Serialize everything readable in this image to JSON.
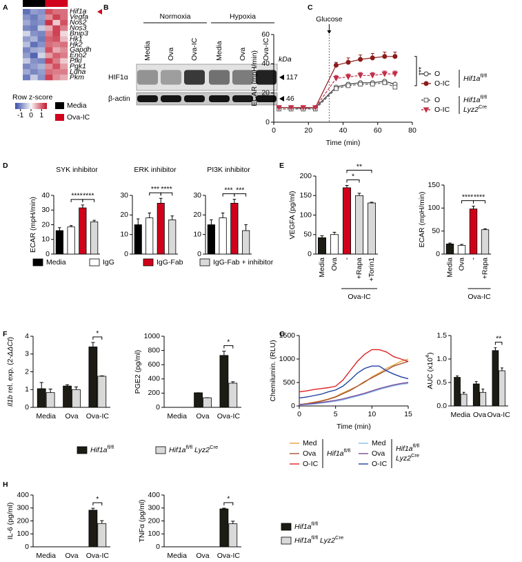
{
  "chart_data": [
    {
      "type": "heatmap",
      "panel": "A",
      "rows": [
        "Hif1a",
        "Vegfa",
        "Nos2",
        "Nos3",
        "Bnip3",
        "Hk1",
        "Hk2",
        "Gapdh",
        "Eno2",
        "Pfkl",
        "Pgk1",
        "Ldha",
        "Pkm"
      ],
      "values": [
        [
          -1.2,
          -0.8,
          -0.9,
          1.1,
          0.9,
          0.9
        ],
        [
          -0.9,
          -1.1,
          -0.8,
          0.7,
          1.2,
          0.9
        ],
        [
          -0.7,
          -1.0,
          -0.9,
          1.3,
          0.3,
          1.1
        ],
        [
          -1.0,
          -1.1,
          -0.4,
          0.5,
          1.2,
          0.8
        ],
        [
          -0.3,
          -0.9,
          -1.0,
          0.8,
          1.2,
          0.2
        ],
        [
          -0.8,
          -0.6,
          -1.1,
          1.0,
          1.1,
          0.4
        ],
        [
          -0.5,
          -1.2,
          -0.9,
          0.9,
          0.8,
          0.9
        ],
        [
          -1.0,
          -0.7,
          -0.6,
          1.1,
          0.5,
          0.7
        ],
        [
          -0.8,
          -1.3,
          -0.3,
          0.6,
          1.0,
          0.8
        ],
        [
          -0.4,
          -0.9,
          -1.0,
          1.2,
          0.8,
          0.3
        ],
        [
          -1.0,
          -0.8,
          -0.6,
          0.7,
          1.1,
          0.6
        ],
        [
          -0.7,
          -1.0,
          -0.8,
          0.9,
          0.8,
          0.8
        ],
        [
          -1.1,
          -0.4,
          -0.9,
          1.2,
          0.7,
          0.5
        ]
      ],
      "zlim": [
        -1.5,
        1.5
      ],
      "zticks": [
        -1,
        0,
        1
      ],
      "colorbar_label": "Row z-score",
      "groups": [
        {
          "name": "Media",
          "color": "#000000"
        },
        {
          "name": "Ova-IC",
          "color": "#d0021b"
        }
      ]
    },
    {
      "type": "blot",
      "panel": "B",
      "conditions": [
        "Normoxia",
        "Hypoxia"
      ],
      "lanes": [
        "Media",
        "Ova",
        "Ova-IC",
        "Media",
        "Ova",
        "Ova-IC"
      ],
      "unit": "kDa",
      "rows": [
        {
          "label": "HIF1α",
          "kda": 117
        },
        {
          "label": "β-actin",
          "kda": 46
        }
      ]
    },
    {
      "type": "line",
      "panel": "C",
      "ylabel": "ECAR (mpH/min)",
      "xlabel": "Time (min)",
      "xlim": [
        0,
        80
      ],
      "xticks": [
        0,
        20,
        40,
        60,
        80
      ],
      "ylim": [
        0,
        60
      ],
      "yticks": [
        0,
        20,
        40,
        60
      ],
      "event": {
        "label": "Glucose",
        "x": 32
      },
      "significance": "***",
      "x": [
        3,
        10,
        17,
        24,
        36,
        43,
        50,
        57,
        64,
        70
      ],
      "series": [
        {
          "name": "O",
          "color": "#333333",
          "marker": "circle-open",
          "dashed": false,
          "values": [
            10,
            10,
            9.5,
            10,
            24,
            26,
            27,
            27,
            28,
            26
          ]
        },
        {
          "name": "O-IC",
          "color": "#8b1a1a",
          "marker": "circle",
          "dashed": false,
          "values": [
            10,
            10,
            10,
            10,
            39,
            41,
            43,
            44,
            45,
            45
          ],
          "errors": [
            1,
            1,
            1,
            1,
            2,
            3,
            3,
            3,
            3,
            3
          ]
        },
        {
          "name": "O",
          "color": "#555555",
          "marker": "square-open",
          "dashed": true,
          "values": [
            9,
            9,
            9,
            9,
            23,
            25,
            26,
            26,
            27,
            24
          ]
        },
        {
          "name": "O-IC",
          "color": "#c0304a",
          "marker": "triangle-down",
          "dashed": true,
          "values": [
            10,
            10,
            10,
            10,
            30,
            31,
            32,
            32,
            33,
            33
          ],
          "errors": [
            1,
            1,
            1,
            1,
            2,
            2,
            2,
            2,
            2,
            2
          ]
        }
      ],
      "legend_groups": [
        [
          "Hif1a",
          "fl/fl"
        ],
        [
          "Hif1a",
          "fl/fl",
          "Lyz2",
          "Cre"
        ]
      ]
    },
    {
      "type": "bar",
      "panel": "D",
      "title": "SYK inhibitor",
      "ylabel": "ECAR (mpH/min)",
      "values": [
        16,
        18.5,
        31.5,
        22
      ],
      "errors": [
        2,
        1,
        2,
        1
      ],
      "colors": [
        "#000000",
        "#ffffff",
        "#d0021b",
        "#d9d9d9"
      ],
      "ylim": [
        0,
        40
      ],
      "yticks": [
        0,
        10,
        20,
        30,
        40
      ],
      "significance": [
        "****",
        "****"
      ],
      "legend": [
        {
          "name": "Media",
          "color": "#000000"
        },
        {
          "name": "IgG",
          "color": "#ffffff"
        },
        {
          "name": "IgG-Fab",
          "color": "#d0021b"
        },
        {
          "name": "IgG-Fab + inhibitor",
          "color": "#d9d9d9"
        }
      ]
    },
    {
      "type": "bar",
      "title": "ERK inhibitor",
      "values": [
        15,
        18.5,
        26,
        17.5
      ],
      "errors": [
        3,
        2.5,
        2.5,
        2
      ],
      "colors": [
        "#000000",
        "#ffffff",
        "#d0021b",
        "#d9d9d9"
      ],
      "ylim": [
        0,
        30
      ],
      "yticks": [
        0,
        10,
        20,
        30
      ],
      "significance": [
        "***",
        "****"
      ]
    },
    {
      "type": "bar",
      "title": "PI3K inhibitor",
      "values": [
        15,
        18.5,
        26,
        12
      ],
      "errors": [
        2.5,
        2.5,
        2,
        3
      ],
      "colors": [
        "#000000",
        "#ffffff",
        "#d0021b",
        "#d9d9d9"
      ],
      "ylim": [
        0,
        30
      ],
      "yticks": [
        0,
        10,
        20,
        30
      ],
      "significance": [
        "***",
        "***"
      ]
    },
    {
      "type": "bar",
      "panel": "E",
      "ylabel": "VEGFA (pg/ml)",
      "categories": [
        "Media",
        "Ova",
        "-",
        "+Rapa",
        "+Torin1"
      ],
      "group_label": "Ova-IC",
      "values": [
        42,
        50,
        170,
        150,
        131
      ],
      "errors": [
        5,
        6,
        6,
        6,
        2
      ],
      "colors": [
        "#1c1c14",
        "#ffffff",
        "#d0021b",
        "#d9d9d9",
        "#d9d9d9"
      ],
      "ylim": [
        0,
        200
      ],
      "yticks": [
        0,
        50,
        100,
        150,
        200
      ],
      "significance": [
        "*",
        "**"
      ]
    },
    {
      "type": "bar",
      "ylabel": "ECAR (mpH/min)",
      "categories": [
        "Media",
        "Ova",
        "-",
        "+Rapa"
      ],
      "group_label": "Ova-IC",
      "values": [
        22,
        19,
        98,
        53
      ],
      "errors": [
        2,
        2,
        6,
        2
      ],
      "colors": [
        "#1c1c14",
        "#ffffff",
        "#d0021b",
        "#d9d9d9"
      ],
      "ylim": [
        0,
        150
      ],
      "yticks": [
        0,
        50,
        100,
        150
      ],
      "significance": [
        "****",
        "****"
      ]
    },
    {
      "type": "bar",
      "panel": "F",
      "ylabel": [
        "Il1b",
        " rel. exp. (2",
        "-ΔΔCt",
        ")"
      ],
      "categories": [
        "Media",
        "Ova",
        "Ova-IC"
      ],
      "series": [
        {
          "name": [
            "Hif1a",
            "fl/fl"
          ],
          "color": "#1c1c14",
          "values": [
            1.05,
            1.2,
            3.4
          ],
          "errors": [
            0.35,
            0.07,
            0.25
          ]
        },
        {
          "name": [
            "Hif1a",
            "fl/fl",
            " Lyz2",
            "Cre"
          ],
          "color": "#d9d9d9",
          "values": [
            0.83,
            1.0,
            1.75
          ],
          "errors": [
            0.2,
            0.15,
            0.02
          ]
        }
      ],
      "ylim": [
        0,
        4
      ],
      "yticks": [
        0,
        1,
        2,
        3,
        4
      ],
      "significance": [
        "*"
      ]
    },
    {
      "type": "bar",
      "ylabel": "PGE2 (pg/ml)",
      "categories": [
        "Media",
        "Ova",
        "Ova-IC"
      ],
      "series": [
        {
          "color": "#1c1c14",
          "values": [
            0,
            205,
            730
          ],
          "errors": [
            0,
            0,
            60
          ]
        },
        {
          "color": "#d9d9d9",
          "values": [
            0,
            135,
            340
          ],
          "errors": [
            0,
            0,
            20
          ]
        }
      ],
      "ylim": [
        0,
        1000
      ],
      "yticks": [
        0,
        200,
        400,
        600,
        800,
        1000
      ],
      "significance": [
        "*"
      ]
    },
    {
      "type": "line",
      "panel": "G",
      "ylabel": "Chemilumin. (RLU)",
      "xlabel": "Time (min)",
      "xlim": [
        0,
        15
      ],
      "xticks": [
        0,
        5,
        10,
        15
      ],
      "ylim": [
        0,
        1500
      ],
      "yticks": [
        0,
        500,
        1000,
        1500
      ],
      "x": [
        0,
        1,
        2,
        3,
        4,
        5,
        6,
        7,
        8,
        9,
        10,
        11,
        12,
        13,
        14,
        15
      ],
      "series": [
        {
          "name": "Med",
          "color": "#e8a040",
          "values": [
            30,
            50,
            80,
            110,
            150,
            200,
            280,
            350,
            420,
            500,
            620,
            700,
            800,
            870,
            950,
            1000
          ]
        },
        {
          "name": "Ova",
          "color": "#a0522d",
          "values": [
            30,
            45,
            70,
            100,
            140,
            190,
            260,
            330,
            420,
            520,
            600,
            680,
            760,
            850,
            900,
            950
          ]
        },
        {
          "name": "O-IC",
          "color": "#e02020",
          "values": [
            300,
            320,
            350,
            370,
            390,
            420,
            550,
            750,
            950,
            1100,
            1200,
            1200,
            1150,
            1050,
            1000,
            950
          ]
        },
        {
          "name": "Med",
          "color": "#88bbee",
          "values": [
            20,
            30,
            40,
            60,
            80,
            100,
            130,
            170,
            210,
            250,
            300,
            350,
            390,
            430,
            460,
            480
          ]
        },
        {
          "name": "Ova",
          "color": "#7a4a9a",
          "values": [
            30,
            40,
            55,
            75,
            95,
            120,
            150,
            190,
            230,
            270,
            320,
            370,
            410,
            450,
            480,
            500
          ]
        },
        {
          "name": "O-IC",
          "color": "#2040a0",
          "values": [
            170,
            190,
            220,
            250,
            300,
            340,
            420,
            550,
            700,
            800,
            850,
            850,
            750,
            680,
            620,
            580
          ]
        }
      ],
      "legend_groups": [
        [
          "Hif1a",
          "fl/fl"
        ],
        [
          "Hif1a",
          "fl/fl",
          "Lyz2",
          "Cre"
        ]
      ]
    },
    {
      "type": "bar",
      "ylabel": [
        "AUC (x10",
        "4",
        ")"
      ],
      "categories": [
        "Media",
        "Ova",
        "Ova-IC"
      ],
      "series": [
        {
          "color": "#1c1c14",
          "values": [
            0.61,
            0.47,
            1.18
          ],
          "errors": [
            0.03,
            0.05,
            0.06
          ]
        },
        {
          "color": "#d9d9d9",
          "values": [
            0.25,
            0.29,
            0.75
          ],
          "errors": [
            0.04,
            0.07,
            0.06
          ]
        }
      ],
      "ylim": [
        0,
        1.5
      ],
      "yticks": [
        {
          "value": 0,
          "label": "0.0"
        },
        0.5,
        {
          "value": 1,
          "label": "1.0"
        },
        1.5
      ],
      "significance": [
        "**"
      ]
    },
    {
      "type": "bar",
      "panel": "H",
      "ylabel": "IL-6 (pg/ml)",
      "categories": [
        "Media",
        "Ova",
        "Ova-IC"
      ],
      "series": [
        {
          "name": [
            "Hif1a",
            "fl/fl"
          ],
          "color": "#1c1c14",
          "values": [
            0,
            0,
            283
          ],
          "errors": [
            0,
            0,
            15
          ]
        },
        {
          "name": [
            "Hif1a",
            "fl/fl",
            " Lyz2",
            "Cre"
          ],
          "color": "#d9d9d9",
          "values": [
            0,
            0,
            180
          ],
          "errors": [
            0,
            0,
            22
          ]
        }
      ],
      "ylim": [
        0,
        400
      ],
      "yticks": [
        0,
        100,
        200,
        300,
        400
      ],
      "significance": [
        "*"
      ]
    },
    {
      "type": "bar",
      "ylabel": "TNFα (pg/ml)",
      "categories": [
        "Media",
        "Ova",
        "Ova-IC"
      ],
      "series": [
        {
          "color": "#1c1c14",
          "values": [
            0,
            0,
            293
          ],
          "errors": [
            0,
            0,
            6
          ]
        },
        {
          "color": "#d9d9d9",
          "values": [
            0,
            0,
            178
          ],
          "errors": [
            0,
            0,
            20
          ]
        }
      ],
      "ylim": [
        0,
        400
      ],
      "yticks": [
        0,
        100,
        200,
        300,
        400
      ],
      "significance": [
        "*"
      ]
    }
  ]
}
